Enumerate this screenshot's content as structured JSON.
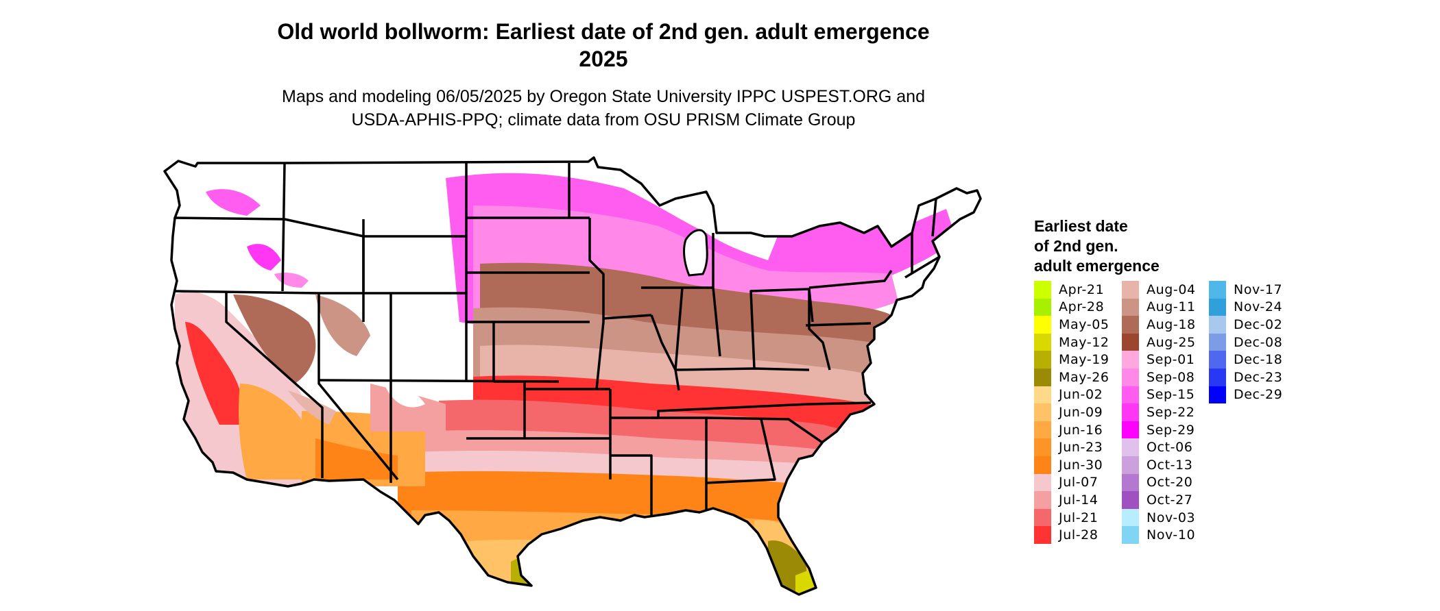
{
  "title": {
    "line1": "Old world bollworm: Earliest date of 2nd gen. adult emergence",
    "line2": "2025"
  },
  "subtitle": {
    "line1": "Maps and modeling 06/05/2025 by Oregon State University IPPC USPEST.ORG and",
    "line2": "USDA-APHIS-PPQ; climate data from OSU PRISM Climate Group"
  },
  "legend": {
    "title_lines": [
      "Earliest date",
      "of 2nd gen.",
      "adult emergence"
    ],
    "columns": [
      [
        {
          "label": "Apr-21",
          "color": "#CCFF00"
        },
        {
          "label": "Apr-28",
          "color": "#A6F000"
        },
        {
          "label": "May-05",
          "color": "#FFFF00"
        },
        {
          "label": "May-12",
          "color": "#D9D900"
        },
        {
          "label": "May-19",
          "color": "#B8B000"
        },
        {
          "label": "May-26",
          "color": "#9A8A06"
        },
        {
          "label": "Jun-02",
          "color": "#FFD98A"
        },
        {
          "label": "Jun-09",
          "color": "#FFC266"
        },
        {
          "label": "Jun-16",
          "color": "#FFA844"
        },
        {
          "label": "Jun-23",
          "color": "#FF9426"
        },
        {
          "label": "Jun-30",
          "color": "#FF8418"
        },
        {
          "label": "Jul-07",
          "color": "#F4C8CC"
        },
        {
          "label": "Jul-14",
          "color": "#F4A0A0"
        },
        {
          "label": "Jul-21",
          "color": "#F4686C"
        },
        {
          "label": "Jul-28",
          "color": "#FF3333"
        }
      ],
      [
        {
          "label": "Aug-04",
          "color": "#E8B4AA"
        },
        {
          "label": "Aug-11",
          "color": "#CC9484"
        },
        {
          "label": "Aug-18",
          "color": "#B06A58"
        },
        {
          "label": "Aug-25",
          "color": "#9C4630"
        },
        {
          "label": "Sep-01",
          "color": "#FFA8DD"
        },
        {
          "label": "Sep-08",
          "color": "#FF88E8"
        },
        {
          "label": "Sep-15",
          "color": "#FF5CF0"
        },
        {
          "label": "Sep-22",
          "color": "#FF36F4"
        },
        {
          "label": "Sep-29",
          "color": "#FF00FF"
        },
        {
          "label": "Oct-06",
          "color": "#E0C0EC"
        },
        {
          "label": "Oct-13",
          "color": "#CCA0DC"
        },
        {
          "label": "Oct-20",
          "color": "#B478D0"
        },
        {
          "label": "Oct-27",
          "color": "#A050C0"
        },
        {
          "label": "Nov-03",
          "color": "#B8ECFF"
        },
        {
          "label": "Nov-10",
          "color": "#80D4F4"
        }
      ],
      [
        {
          "label": "Nov-17",
          "color": "#50B8E8"
        },
        {
          "label": "Nov-24",
          "color": "#30A0DA"
        },
        {
          "label": "Dec-02",
          "color": "#A8C8EE"
        },
        {
          "label": "Dec-08",
          "color": "#7C9CE8"
        },
        {
          "label": "Dec-18",
          "color": "#5068F0"
        },
        {
          "label": "Dec-23",
          "color": "#2838F4"
        },
        {
          "label": "Dec-29",
          "color": "#0000FF"
        }
      ]
    ]
  }
}
